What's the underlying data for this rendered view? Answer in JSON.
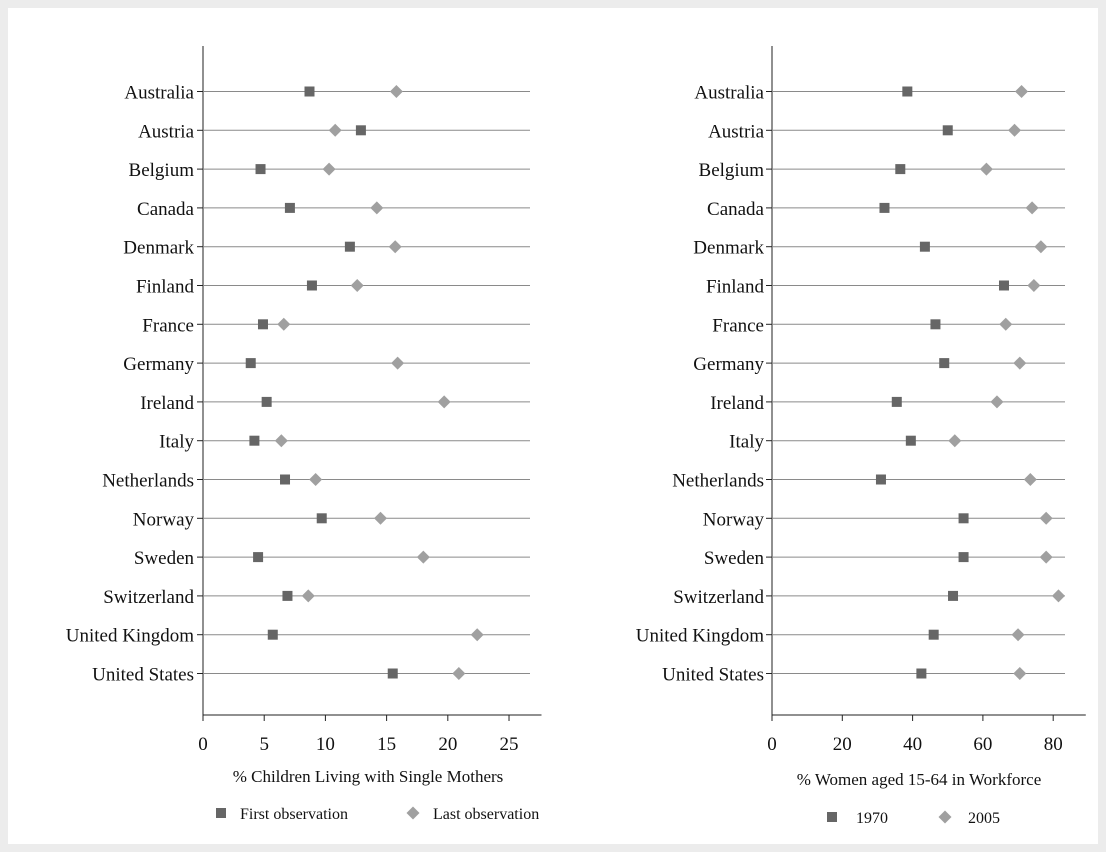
{
  "colors": {
    "first_marker": "#666666",
    "last_marker": "#a0a0a0",
    "row_line": "#8a8a8a",
    "frame": "#ffffff",
    "background": "#ececec"
  },
  "chart_data": [
    {
      "type": "scatter",
      "orientation": "horizontal-dot",
      "xlabel": "% Children Living with Single Mothers",
      "xlim": [
        0,
        27
      ],
      "xticks": [
        0,
        5,
        10,
        15,
        20,
        25
      ],
      "grid": false,
      "legend_position": "bottom",
      "categories": [
        "Australia",
        "Austria",
        "Belgium",
        "Canada",
        "Denmark",
        "Finland",
        "France",
        "Germany",
        "Ireland",
        "Italy",
        "Netherlands",
        "Norway",
        "Sweden",
        "Switzerland",
        "United Kingdom",
        "United States"
      ],
      "series": [
        {
          "name": "First observation",
          "marker": "square",
          "values": [
            8.7,
            12.9,
            4.7,
            7.1,
            12.0,
            8.9,
            4.9,
            3.9,
            5.2,
            4.2,
            6.7,
            9.7,
            4.5,
            6.9,
            5.7,
            15.5
          ]
        },
        {
          "name": "Last observation",
          "marker": "diamond",
          "values": [
            15.8,
            10.8,
            10.3,
            14.2,
            15.7,
            12.6,
            6.6,
            15.9,
            19.7,
            6.4,
            9.2,
            14.5,
            18.0,
            8.6,
            22.4,
            20.9
          ]
        }
      ]
    },
    {
      "type": "scatter",
      "orientation": "horizontal-dot",
      "xlabel": "% Women aged 15-64 in Workforce",
      "xlim": [
        0,
        87
      ],
      "xticks": [
        0,
        20,
        40,
        60,
        80
      ],
      "grid": false,
      "legend_position": "bottom",
      "categories": [
        "Australia",
        "Austria",
        "Belgium",
        "Canada",
        "Denmark",
        "Finland",
        "France",
        "Germany",
        "Ireland",
        "Italy",
        "Netherlands",
        "Norway",
        "Sweden",
        "Switzerland",
        "United Kingdom",
        "United States"
      ],
      "series": [
        {
          "name": "1970",
          "marker": "square",
          "values": [
            38.5,
            50.0,
            36.5,
            32.0,
            43.5,
            66.0,
            46.5,
            49.0,
            35.5,
            39.5,
            31.0,
            54.5,
            54.5,
            51.5,
            46.0,
            42.5
          ]
        },
        {
          "name": "2005",
          "marker": "diamond",
          "values": [
            71.0,
            69.0,
            61.0,
            74.0,
            76.5,
            74.5,
            66.5,
            70.5,
            64.0,
            52.0,
            73.5,
            78.0,
            78.0,
            81.5,
            70.0,
            70.5
          ]
        }
      ]
    }
  ]
}
